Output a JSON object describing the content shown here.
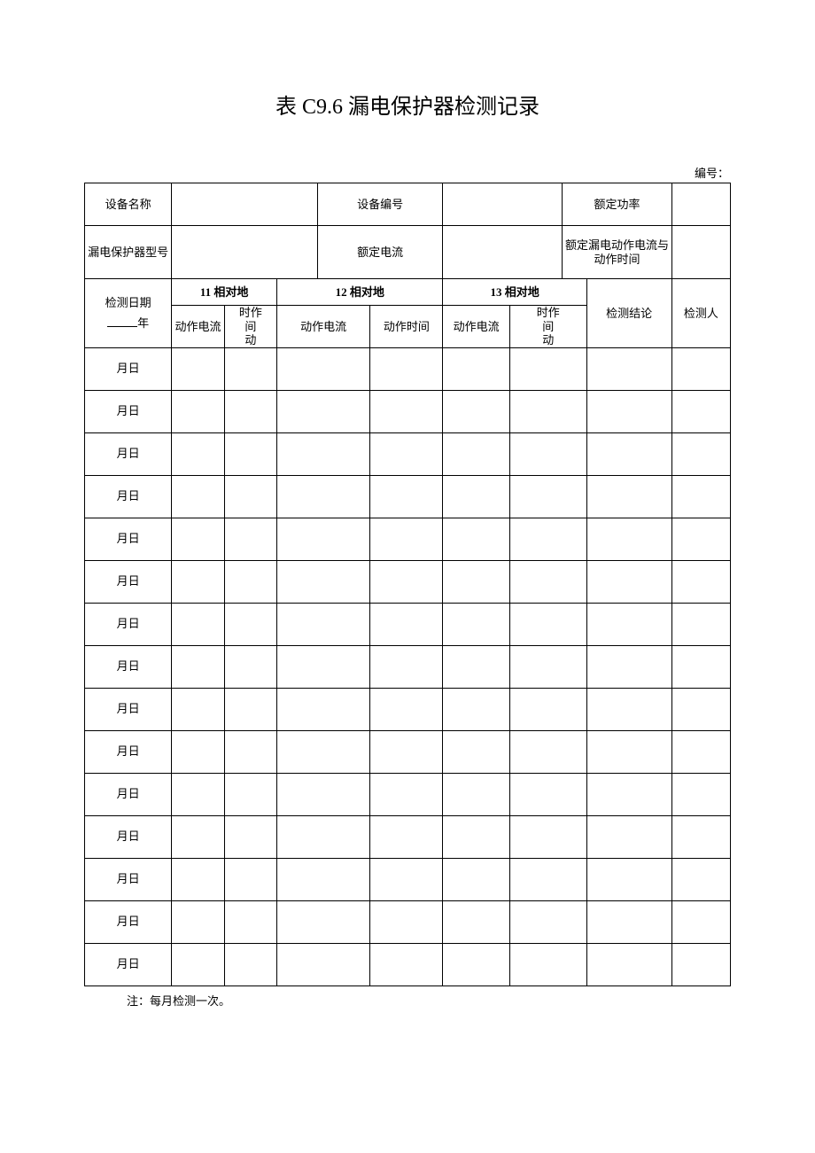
{
  "title": "表 C9.6 漏电保护器检测记录",
  "number_label": "编号：",
  "header": {
    "device_name": "设备名称",
    "device_no": "设备编号",
    "rated_power": "额定功率",
    "protector_model": "漏电保护器型号",
    "rated_current": "额定电流",
    "rated_leak": "额定漏电动作电流与动作时间",
    "date_label": "检测日期",
    "year_suffix": "年",
    "phase11": "11 相对地",
    "phase12": "12 相对地",
    "phase13": "13 相对地",
    "op_current": "动作电流",
    "op_time": "动作时间",
    "op_time_short": "时作\n间\n动",
    "conclusion": "检测结论",
    "inspector": "检测人"
  },
  "row_label": "月日",
  "row_count": 15,
  "footnote": "注：每月检测一次。",
  "colors": {
    "text": "#000000",
    "background": "#ffffff",
    "border": "#000000"
  },
  "title_fontsize": 24,
  "cell_fontsize": 13
}
